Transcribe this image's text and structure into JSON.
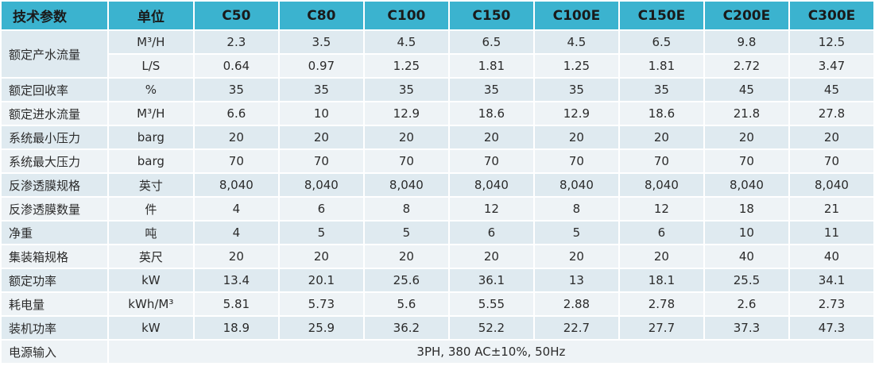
{
  "header": {
    "param": "技术参数",
    "unit": "单位",
    "models": [
      "C50",
      "C80",
      "C100",
      "C150",
      "C100E",
      "C150E",
      "C200E",
      "C300E"
    ]
  },
  "rows": [
    {
      "param": "额定产水流量",
      "unit": "M³/H",
      "values": [
        "2.3",
        "3.5",
        "4.5",
        "6.5",
        "4.5",
        "6.5",
        "9.8",
        "12.5"
      ]
    },
    {
      "param": "",
      "unit": "L/S",
      "values": [
        "0.64",
        "0.97",
        "1.25",
        "1.81",
        "1.25",
        "1.81",
        "2.72",
        "3.47"
      ]
    },
    {
      "param": "额定回收率",
      "unit": "%",
      "values": [
        "35",
        "35",
        "35",
        "35",
        "35",
        "35",
        "45",
        "45"
      ]
    },
    {
      "param": "额定进水流量",
      "unit": "M³/H",
      "values": [
        "6.6",
        "10",
        "12.9",
        "18.6",
        "12.9",
        "18.6",
        "21.8",
        "27.8"
      ]
    },
    {
      "param": "系统最小压力",
      "unit": "barg",
      "values": [
        "20",
        "20",
        "20",
        "20",
        "20",
        "20",
        "20",
        "20"
      ]
    },
    {
      "param": "系统最大压力",
      "unit": "barg",
      "values": [
        "70",
        "70",
        "70",
        "70",
        "70",
        "70",
        "70",
        "70"
      ]
    },
    {
      "param": "反渗透膜规格",
      "unit": "英寸",
      "values": [
        "8,040",
        "8,040",
        "8,040",
        "8,040",
        "8,040",
        "8,040",
        "8,040",
        "8,040"
      ]
    },
    {
      "param": "反渗透膜数量",
      "unit": "件",
      "values": [
        "4",
        "6",
        "8",
        "12",
        "8",
        "12",
        "18",
        "21"
      ]
    },
    {
      "param": "净重",
      "unit": "吨",
      "values": [
        "4",
        "5",
        "5",
        "6",
        "5",
        "6",
        "10",
        "11"
      ]
    },
    {
      "param": "集装箱规格",
      "unit": "英尺",
      "values": [
        "20",
        "20",
        "20",
        "20",
        "20",
        "20",
        "40",
        "40"
      ]
    },
    {
      "param": "额定功率",
      "unit": "kW",
      "values": [
        "13.4",
        "20.1",
        "25.6",
        "36.1",
        "13",
        "18.1",
        "25.5",
        "34.1"
      ]
    },
    {
      "param": "耗电量",
      "unit": "kWh/M³",
      "values": [
        "5.81",
        "5.73",
        "5.6",
        "5.55",
        "2.88",
        "2.78",
        "2.6",
        "2.73"
      ]
    },
    {
      "param": "装机功率",
      "unit": "kW",
      "values": [
        "18.9",
        "25.9",
        "36.2",
        "52.2",
        "22.7",
        "27.7",
        "37.3",
        "47.3"
      ]
    }
  ],
  "power": {
    "param": "电源输入",
    "value": "3PH, 380 AC±10%, 50Hz"
  },
  "colors": {
    "header": "#3bb3cf",
    "row_dark": "#dfeaf0",
    "row_light": "#eef3f6"
  }
}
